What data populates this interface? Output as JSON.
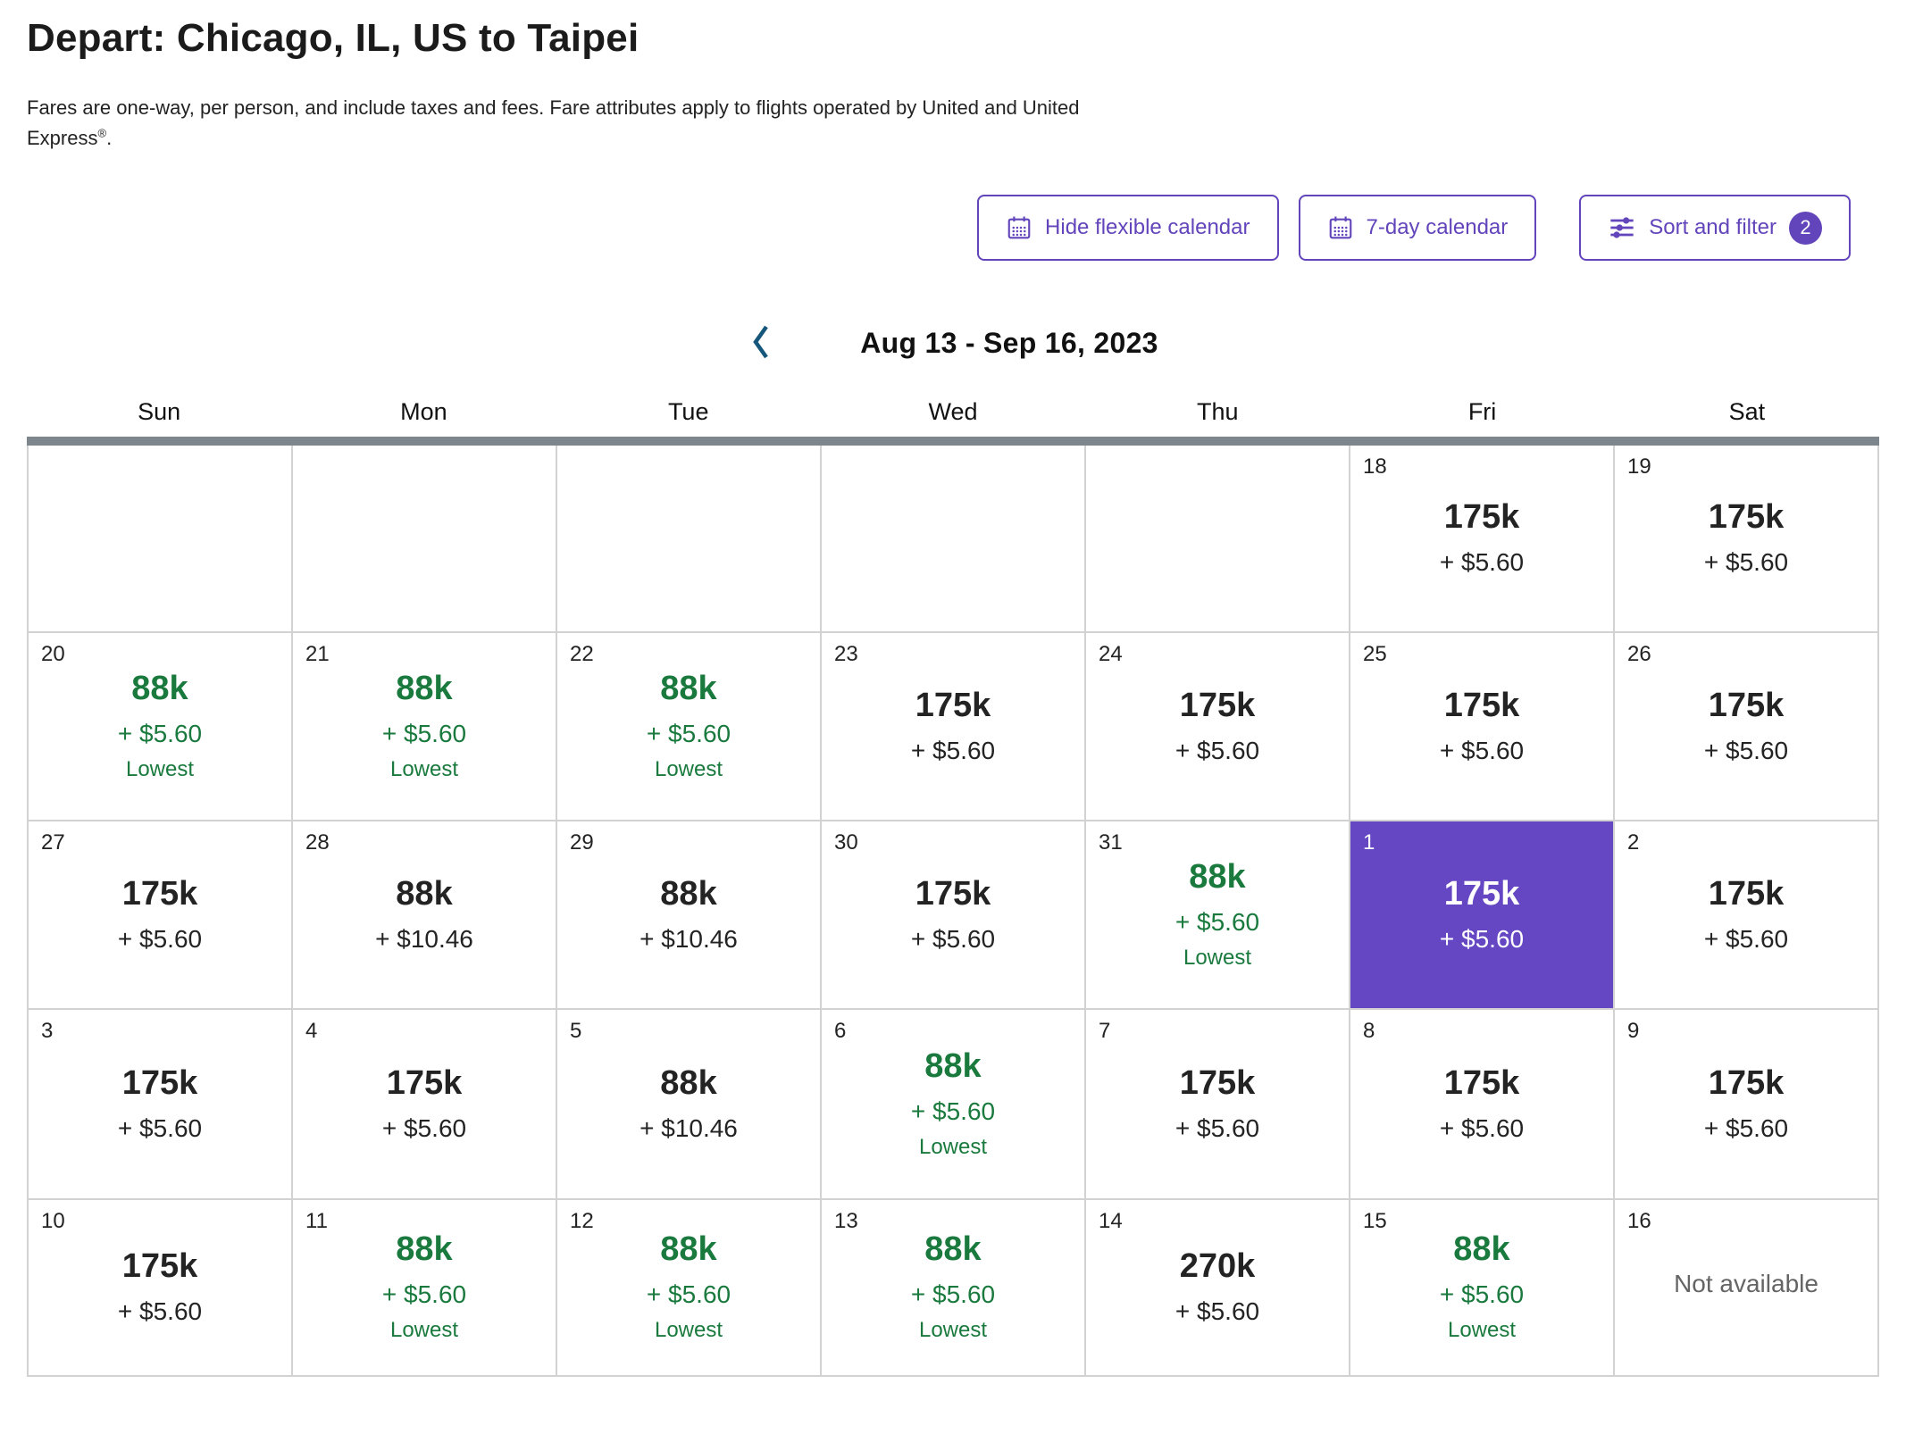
{
  "header": {
    "title": "Depart: Chicago, IL, US to Taipei",
    "subtitle_line1": "Fares are one-way, per person, and include taxes and fees. Fare attributes apply to flights operated by United and United",
    "subtitle_line2_text": "Express",
    "subtitle_reg_mark": "®",
    "subtitle_period": "."
  },
  "toolbar": {
    "hide_flexible_label": "Hide flexible calendar",
    "seven_day_label": "7-day calendar",
    "sort_filter_label": "Sort and filter",
    "sort_filter_badge": "2"
  },
  "calendar": {
    "range_label": "Aug 13 - Sep 16, 2023",
    "day_headers": [
      "Sun",
      "Mon",
      "Tue",
      "Wed",
      "Thu",
      "Fri",
      "Sat"
    ],
    "lowest_label": "Lowest",
    "not_available_label": "Not available",
    "weeks": [
      [
        {
          "state": "empty"
        },
        {
          "state": "empty"
        },
        {
          "state": "empty"
        },
        {
          "state": "empty"
        },
        {
          "state": "empty"
        },
        {
          "day": "18",
          "miles": "175k",
          "fee": "+ $5.60",
          "state": "default"
        },
        {
          "day": "19",
          "miles": "175k",
          "fee": "+ $5.60",
          "state": "default"
        }
      ],
      [
        {
          "day": "20",
          "miles": "88k",
          "fee": "+ $5.60",
          "state": "lowest"
        },
        {
          "day": "21",
          "miles": "88k",
          "fee": "+ $5.60",
          "state": "lowest"
        },
        {
          "day": "22",
          "miles": "88k",
          "fee": "+ $5.60",
          "state": "lowest"
        },
        {
          "day": "23",
          "miles": "175k",
          "fee": "+ $5.60",
          "state": "default"
        },
        {
          "day": "24",
          "miles": "175k",
          "fee": "+ $5.60",
          "state": "default"
        },
        {
          "day": "25",
          "miles": "175k",
          "fee": "+ $5.60",
          "state": "default"
        },
        {
          "day": "26",
          "miles": "175k",
          "fee": "+ $5.60",
          "state": "default"
        }
      ],
      [
        {
          "day": "27",
          "miles": "175k",
          "fee": "+ $5.60",
          "state": "default"
        },
        {
          "day": "28",
          "miles": "88k",
          "fee": "+ $10.46",
          "state": "default"
        },
        {
          "day": "29",
          "miles": "88k",
          "fee": "+ $10.46",
          "state": "default"
        },
        {
          "day": "30",
          "miles": "175k",
          "fee": "+ $5.60",
          "state": "default"
        },
        {
          "day": "31",
          "miles": "88k",
          "fee": "+ $5.60",
          "state": "lowest"
        },
        {
          "day": "1",
          "miles": "175k",
          "fee": "+ $5.60",
          "state": "selected"
        },
        {
          "day": "2",
          "miles": "175k",
          "fee": "+ $5.60",
          "state": "default"
        }
      ],
      [
        {
          "day": "3",
          "miles": "175k",
          "fee": "+ $5.60",
          "state": "default"
        },
        {
          "day": "4",
          "miles": "175k",
          "fee": "+ $5.60",
          "state": "default"
        },
        {
          "day": "5",
          "miles": "88k",
          "fee": "+ $10.46",
          "state": "default"
        },
        {
          "day": "6",
          "miles": "88k",
          "fee": "+ $5.60",
          "state": "lowest"
        },
        {
          "day": "7",
          "miles": "175k",
          "fee": "+ $5.60",
          "state": "default"
        },
        {
          "day": "8",
          "miles": "175k",
          "fee": "+ $5.60",
          "state": "default"
        },
        {
          "day": "9",
          "miles": "175k",
          "fee": "+ $5.60",
          "state": "default"
        }
      ],
      [
        {
          "day": "10",
          "miles": "175k",
          "fee": "+ $5.60",
          "state": "default"
        },
        {
          "day": "11",
          "miles": "88k",
          "fee": "+ $5.60",
          "state": "lowest"
        },
        {
          "day": "12",
          "miles": "88k",
          "fee": "+ $5.60",
          "state": "lowest"
        },
        {
          "day": "13",
          "miles": "88k",
          "fee": "+ $5.60",
          "state": "lowest"
        },
        {
          "day": "14",
          "miles": "270k",
          "fee": "+ $5.60",
          "state": "default"
        },
        {
          "day": "15",
          "miles": "88k",
          "fee": "+ $5.60",
          "state": "lowest"
        },
        {
          "day": "16",
          "state": "unavailable"
        }
      ]
    ]
  },
  "colors": {
    "accent_purple": "#6244bb",
    "selected_cell_purple": "#6546c3",
    "lowest_green": "#1a7a3e",
    "header_bar_gray": "#7d868c",
    "chevron_blue": "#15567b"
  }
}
